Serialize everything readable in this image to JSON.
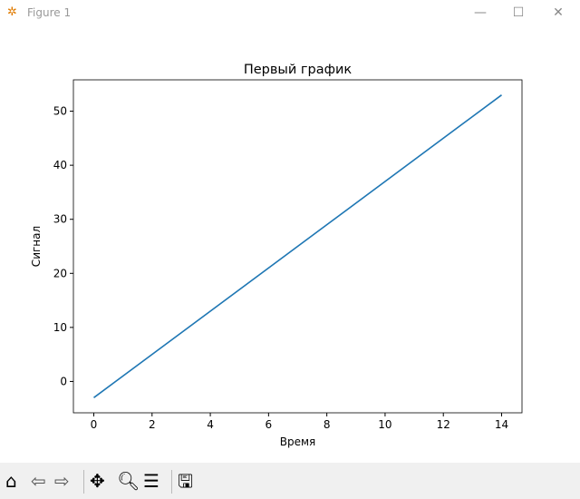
{
  "window": {
    "title": "Figure 1",
    "icon": "matplotlib-icon"
  },
  "toolbar": {
    "items": [
      "home-icon",
      "back-icon",
      "forward-icon",
      "pan-icon",
      "zoom-icon",
      "configure-subplots-icon",
      "save-icon"
    ]
  },
  "chart_data": {
    "type": "line",
    "title": "Первый график",
    "xlabel": "Время",
    "ylabel": "Сигнал",
    "xlim": [
      -0.7,
      14.7
    ],
    "ylim": [
      -5.8,
      55.8
    ],
    "xticks": [
      0,
      2,
      4,
      6,
      8,
      10,
      12,
      14
    ],
    "yticks": [
      0,
      10,
      20,
      30,
      40,
      50
    ],
    "grid": false,
    "series": [
      {
        "color": "#1f77b4",
        "x": [
          0,
          14
        ],
        "y": [
          -3,
          53
        ]
      }
    ]
  }
}
